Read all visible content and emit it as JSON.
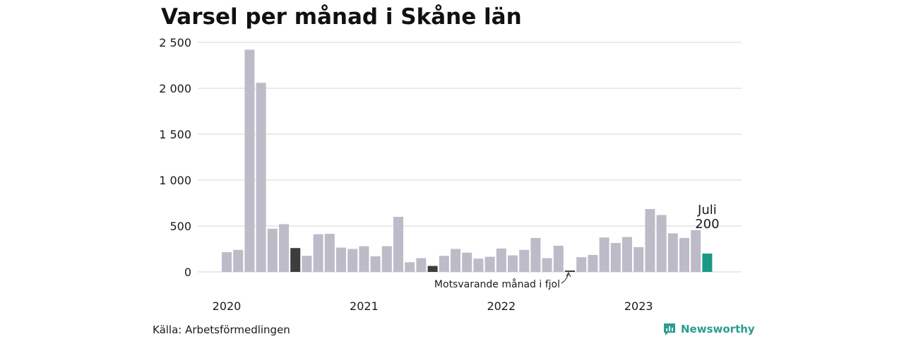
{
  "title": "Varsel per månad i Skåne län",
  "source": "Källa: Arbetsförmedlingen",
  "brand": {
    "name": "Newsworthy",
    "icon": "newsworthy-logo-icon",
    "color": "#2a9d8f"
  },
  "chart_data": {
    "type": "bar",
    "title": "Varsel per månad i Skåne län",
    "xlabel": "",
    "ylabel": "",
    "ylim": [
      0,
      2500
    ],
    "y_ticks": [
      0,
      500,
      1000,
      1500,
      2000,
      2500
    ],
    "y_tick_labels": [
      "0",
      "500",
      "1 000",
      "1 500",
      "2 000",
      "2 500"
    ],
    "x_tick_labels": [
      {
        "label": "2020",
        "index": 0
      },
      {
        "label": "2021",
        "index": 12
      },
      {
        "label": "2022",
        "index": 24
      },
      {
        "label": "2023",
        "index": 36
      }
    ],
    "grid": true,
    "categories": [
      "2020-01",
      "2020-02",
      "2020-03",
      "2020-04",
      "2020-05",
      "2020-06",
      "2020-07",
      "2020-08",
      "2020-09",
      "2020-10",
      "2020-11",
      "2020-12",
      "2021-01",
      "2021-02",
      "2021-03",
      "2021-04",
      "2021-05",
      "2021-06",
      "2021-07",
      "2021-08",
      "2021-09",
      "2021-10",
      "2021-11",
      "2021-12",
      "2022-01",
      "2022-02",
      "2022-03",
      "2022-04",
      "2022-05",
      "2022-06",
      "2022-07",
      "2022-08",
      "2022-09",
      "2022-10",
      "2022-11",
      "2022-12",
      "2023-01",
      "2023-02",
      "2023-03",
      "2023-04",
      "2023-05",
      "2023-06",
      "2023-07"
    ],
    "values": [
      215,
      240,
      2420,
      2060,
      470,
      520,
      260,
      175,
      410,
      415,
      265,
      250,
      280,
      170,
      280,
      600,
      105,
      150,
      65,
      175,
      250,
      210,
      145,
      165,
      255,
      180,
      240,
      370,
      150,
      285,
      15,
      160,
      185,
      375,
      315,
      380,
      270,
      685,
      620,
      420,
      370,
      455,
      200
    ],
    "highlight_indices": [
      6,
      18,
      30
    ],
    "current_index": 42,
    "colors": {
      "default": "#bdbbc8",
      "highlight": "#3d3d3d",
      "current": "#1a9985",
      "grid": "#dddddd"
    },
    "annotations": [
      {
        "text": "Motsvarande månad i fjol",
        "index": 30
      },
      {
        "text": "Juli",
        "index": 42
      },
      {
        "text": "200",
        "index": 42
      }
    ]
  }
}
